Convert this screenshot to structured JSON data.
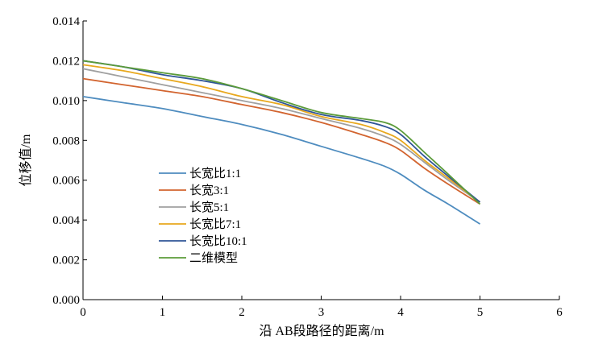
{
  "chart_data": {
    "type": "line",
    "title": "",
    "xlabel": "沿 AB段路径的距离/m",
    "ylabel": "位移值/m",
    "xlim": [
      0,
      6
    ],
    "ylim": [
      0,
      0.014
    ],
    "x_ticks": [
      "0",
      "1",
      "2",
      "3",
      "4",
      "5",
      "6"
    ],
    "y_ticks": [
      "0.000",
      "0.002",
      "0.004",
      "0.006",
      "0.008",
      "0.010",
      "0.012",
      "0.014"
    ],
    "grid": false,
    "legend_position": "lower-left",
    "x": [
      0,
      0.5,
      1,
      1.5,
      2,
      2.5,
      3,
      3.5,
      3.8,
      4,
      4.3,
      4.6,
      5
    ],
    "series": [
      {
        "name": "长宽比1:1",
        "color": "#4e8cbf",
        "values": [
          0.0102,
          0.0099,
          0.0096,
          0.0092,
          0.0088,
          0.0083,
          0.0077,
          0.0071,
          0.0067,
          0.0063,
          0.0055,
          0.0048,
          0.0038
        ]
      },
      {
        "name": "长宽3:1",
        "color": "#d2642f",
        "values": [
          0.0111,
          0.0108,
          0.0105,
          0.0102,
          0.0098,
          0.0094,
          0.0089,
          0.0083,
          0.0079,
          0.0075,
          0.0066,
          0.0058,
          0.0048
        ]
      },
      {
        "name": "长宽5:1",
        "color": "#a0a0a0",
        "values": [
          0.0116,
          0.0112,
          0.0108,
          0.0104,
          0.01,
          0.0096,
          0.0091,
          0.0086,
          0.0082,
          0.0078,
          0.0069,
          0.006,
          0.0049
        ]
      },
      {
        "name": "长宽比7:1",
        "color": "#e8a81e",
        "values": [
          0.0118,
          0.0115,
          0.0111,
          0.0107,
          0.0102,
          0.0098,
          0.0092,
          0.0088,
          0.0084,
          0.008,
          0.007,
          0.0061,
          0.0049
        ]
      },
      {
        "name": "长宽比10:1",
        "color": "#2f5597",
        "values": [
          0.012,
          0.0117,
          0.0113,
          0.011,
          0.0106,
          0.0099,
          0.0093,
          0.009,
          0.0087,
          0.0083,
          0.0072,
          0.0062,
          0.0049
        ]
      },
      {
        "name": "二维模型",
        "color": "#5b9b3a",
        "values": [
          0.012,
          0.0117,
          0.0114,
          0.0111,
          0.0106,
          0.01,
          0.0094,
          0.0091,
          0.0089,
          0.0085,
          0.0074,
          0.0063,
          0.0048
        ]
      }
    ]
  }
}
